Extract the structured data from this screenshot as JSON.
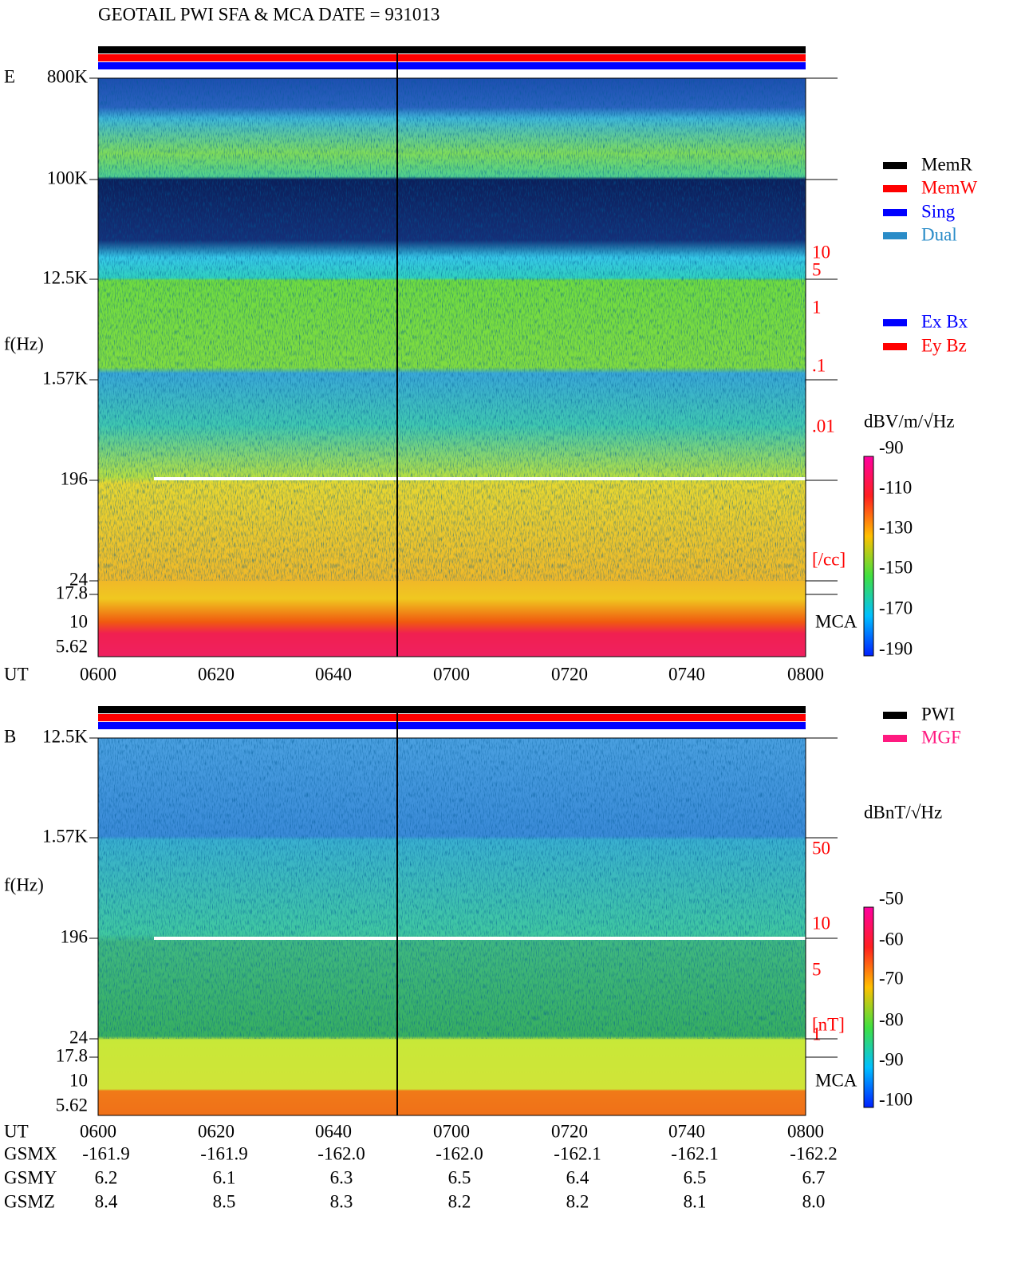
{
  "title": "GEOTAIL  PWI SFA & MCA   DATE = 931013",
  "panels": [
    {
      "label": "E",
      "ylabel": "f(Hz)",
      "yticks": [
        "800K",
        "100K",
        "12.5K",
        "1.57K",
        "196",
        "24",
        "17.8",
        "10",
        "5.62"
      ],
      "xlabel": "UT",
      "xticks": [
        "0600",
        "0620",
        "0640",
        "0700",
        "0720",
        "0740",
        "0800"
      ],
      "mca": "MCA",
      "right_ticks": [
        "10",
        "5",
        "1",
        ".1",
        ".01",
        "[/cc]"
      ],
      "colorbar": {
        "label": "dBV/m/√Hz",
        "ticks": [
          "-90",
          "-110",
          "-130",
          "-150",
          "-170",
          "-190"
        ]
      }
    },
    {
      "label": "B",
      "ylabel": "f(Hz)",
      "yticks": [
        "12.5K",
        "1.57K",
        "196",
        "24",
        "17.8",
        "10",
        "5.62"
      ],
      "xlabel": "UT",
      "xticks": [
        "0600",
        "0620",
        "0640",
        "0700",
        "0720",
        "0740",
        "0800"
      ],
      "mca": "MCA",
      "right_ticks": [
        "50",
        "10",
        "5",
        "1",
        "[nT]"
      ],
      "colorbar": {
        "label": "dBnT/√Hz",
        "ticks": [
          "-50",
          "-60",
          "-70",
          "-80",
          "-90",
          "-100"
        ]
      }
    }
  ],
  "legend_mode": [
    "MemR",
    "MemW",
    "Sing",
    "Dual"
  ],
  "legend_component": [
    "Ex Bx",
    "Ey Bz"
  ],
  "legend_source": [
    "PWI",
    "MGF"
  ],
  "orbit": [
    {
      "label": "GSMX",
      "values": [
        "-161.9",
        "-161.9",
        "-162.0",
        "-162.0",
        "-162.1",
        "-162.1",
        "-162.2"
      ]
    },
    {
      "label": "GSMY",
      "values": [
        "6.2",
        "6.1",
        "6.3",
        "6.5",
        "6.4",
        "6.5",
        "6.7"
      ]
    },
    {
      "label": "GSMZ",
      "values": [
        "8.4",
        "8.5",
        "8.3",
        "8.2",
        "8.2",
        "8.1",
        "8.0"
      ]
    }
  ]
}
